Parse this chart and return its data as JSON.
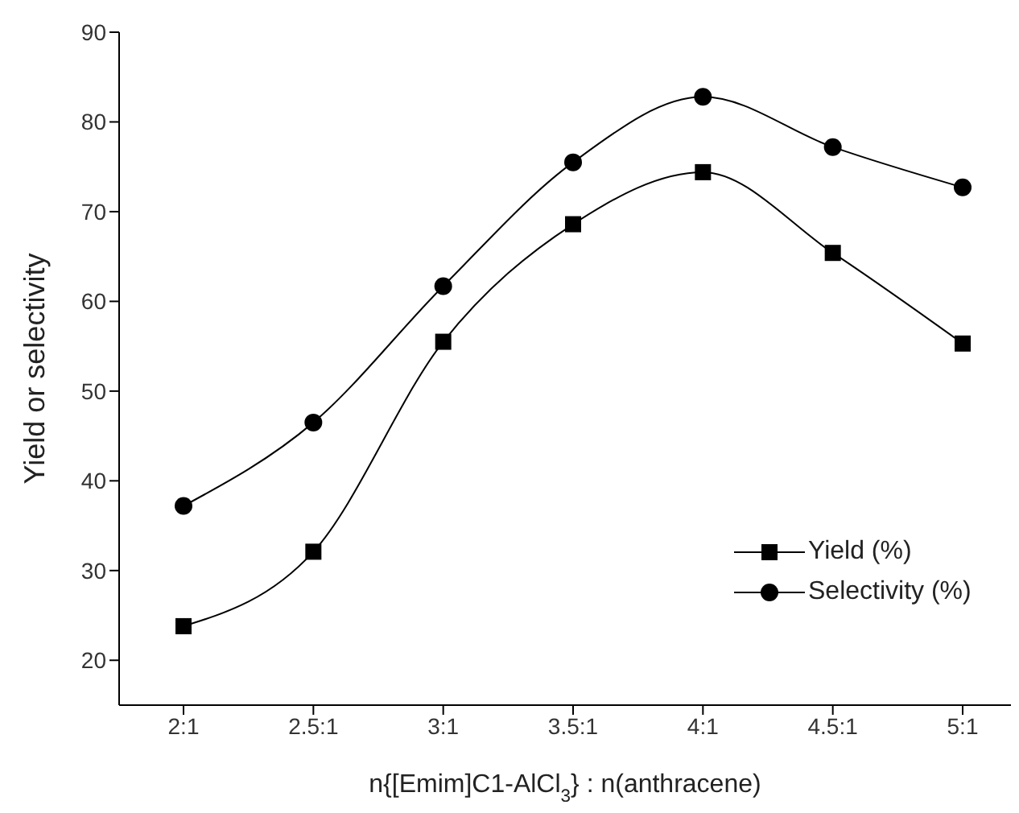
{
  "chart_data": {
    "type": "line",
    "xlabel": "n{[Emim]C1-AlCl$_{3}$} : n(anthracene)",
    "ylabel": "Yield or selectivity",
    "categories": [
      "2:1",
      "2.5:1",
      "3:1",
      "3.5:1",
      "4:1",
      "4.5:1",
      "5:1"
    ],
    "series": [
      {
        "name": "Yield (%)",
        "color": "#000000",
        "marker": "square",
        "values": [
          23.8,
          32.1,
          55.5,
          68.6,
          74.4,
          65.4,
          55.3
        ]
      },
      {
        "name": "Selectivity (%)",
        "color": "#000000",
        "marker": "circle",
        "values": [
          37.2,
          46.5,
          61.7,
          75.5,
          82.8,
          77.2,
          72.7
        ]
      }
    ],
    "ylim": [
      15,
      90
    ],
    "yticks": [
      20,
      30,
      40,
      50,
      60,
      70,
      80,
      90
    ],
    "grid": false,
    "legend": "right",
    "line_style": "solid"
  }
}
